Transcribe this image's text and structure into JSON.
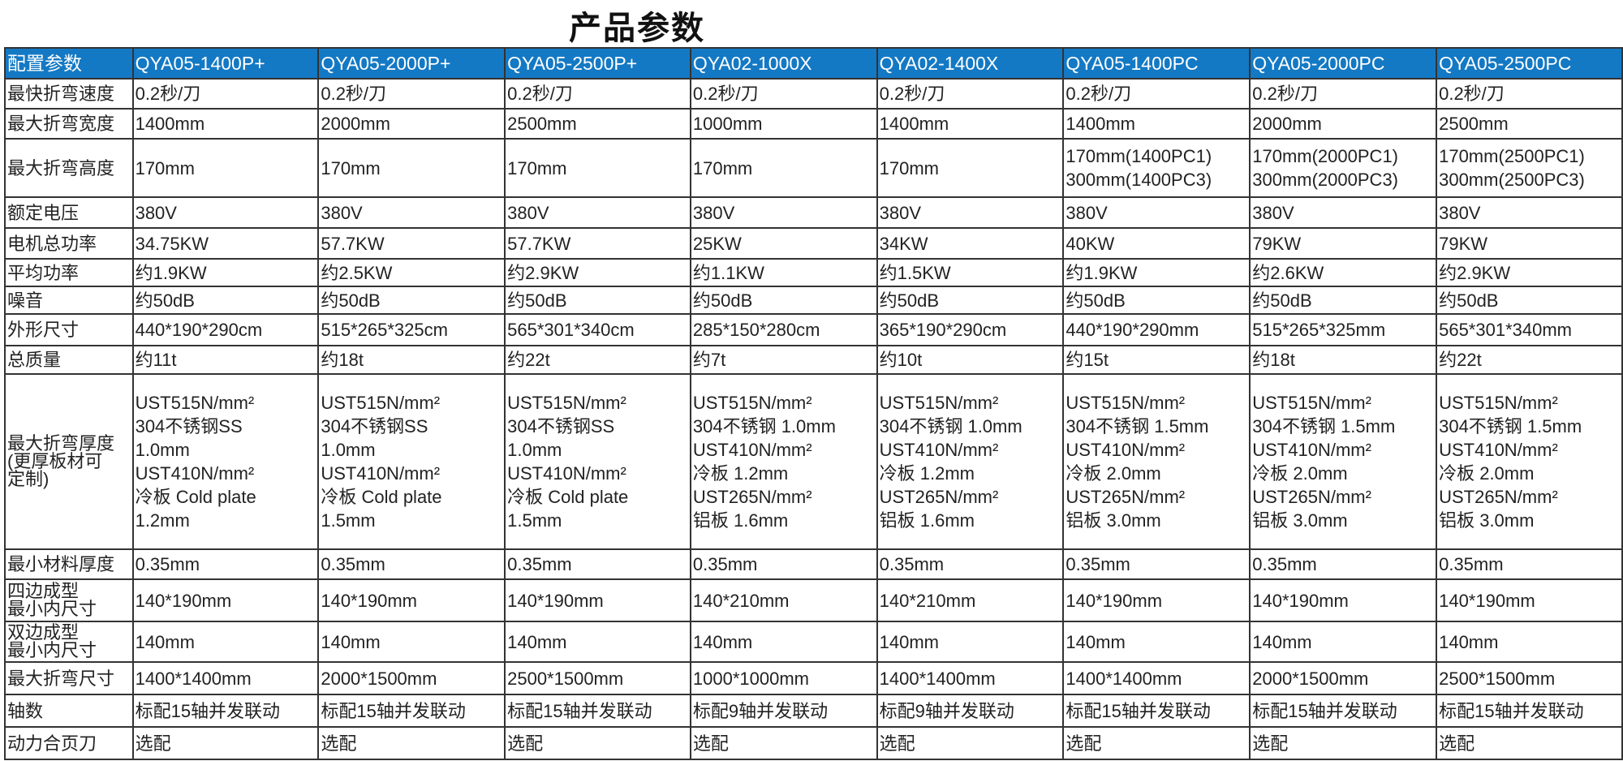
{
  "title": "产品参数",
  "header": [
    "配置参数",
    "QYA05-1400P+",
    "QYA05-2000P+",
    "QYA05-2500P+",
    "QYA02-1000X",
    "QYA02-1400X",
    "QYA05-1400PC",
    "QYA05-2000PC",
    "QYA05-2500PC"
  ],
  "colors": {
    "header_bg": "#1479c4",
    "header_text": "#ffffff"
  },
  "rows": [
    [
      "最快折弯速度",
      "0.2秒/刀",
      "0.2秒/刀",
      "0.2秒/刀",
      "0.2秒/刀",
      "0.2秒/刀",
      "0.2秒/刀",
      "0.2秒/刀",
      "0.2秒/刀"
    ],
    [
      "最大折弯宽度",
      "1400mm",
      "2000mm",
      "2500mm",
      "1000mm",
      "1400mm",
      "1400mm",
      "2000mm",
      "2500mm"
    ],
    [
      "最大折弯高度",
      "170mm",
      "170mm",
      "170mm",
      "170mm",
      "170mm",
      "170mm(1400PC1)\n300mm(1400PC3)",
      "170mm(2000PC1)\n300mm(2000PC3)",
      "170mm(2500PC1)\n300mm(2500PC3)"
    ],
    [
      "额定电压",
      "380V",
      "380V",
      "380V",
      "380V",
      "380V",
      "380V",
      "380V",
      "380V"
    ],
    [
      "电机总功率",
      "34.75KW",
      "57.7KW",
      "57.7KW",
      "25KW",
      "34KW",
      "40KW",
      "79KW",
      "79KW"
    ],
    [
      "平均功率",
      "约1.9KW",
      "约2.5KW",
      "约2.9KW",
      "约1.1KW",
      "约1.5KW",
      "约1.9KW",
      "约2.6KW",
      "约2.9KW"
    ],
    [
      "噪音",
      "约50dB",
      "约50dB",
      "约50dB",
      "约50dB",
      "约50dB",
      "约50dB",
      "约50dB",
      "约50dB"
    ],
    [
      "外形尺寸",
      "440*190*290cm",
      "515*265*325cm",
      "565*301*340cm",
      "285*150*280cm",
      "365*190*290cm",
      "440*190*290mm",
      "515*265*325mm",
      "565*301*340mm"
    ],
    [
      "总质量",
      "约11t",
      "约18t",
      "约22t",
      "约7t",
      "约10t",
      "约15t",
      "约18t",
      "约22t"
    ],
    [
      "最大折弯厚度\n(更厚板材可\n定制)",
      "UST515N/mm²\n304不锈钢SS\n1.0mm\nUST410N/mm²\n冷板 Cold plate\n1.2mm",
      "UST515N/mm²\n304不锈钢SS\n1.0mm\nUST410N/mm²\n冷板 Cold plate\n1.5mm",
      "UST515N/mm²\n304不锈钢SS\n1.0mm\nUST410N/mm²\n冷板 Cold plate\n1.5mm",
      "UST515N/mm²\n304不锈钢 1.0mm\nUST410N/mm²\n冷板 1.2mm\nUST265N/mm²\n铝板 1.6mm",
      "UST515N/mm²\n304不锈钢 1.0mm\nUST410N/mm²\n冷板 1.2mm\nUST265N/mm²\n铝板 1.6mm",
      "UST515N/mm²\n304不锈钢 1.5mm\nUST410N/mm²\n冷板 2.0mm\nUST265N/mm²\n铝板 3.0mm",
      "UST515N/mm²\n304不锈钢 1.5mm\nUST410N/mm²\n冷板 2.0mm\nUST265N/mm²\n铝板 3.0mm",
      "UST515N/mm²\n304不锈钢 1.5mm\nUST410N/mm²\n冷板 2.0mm\nUST265N/mm²\n铝板 3.0mm"
    ],
    [
      "最小材料厚度",
      "0.35mm",
      "0.35mm",
      "0.35mm",
      "0.35mm",
      "0.35mm",
      "0.35mm",
      "0.35mm",
      "0.35mm"
    ],
    [
      "四边成型\n最小内尺寸",
      "140*190mm",
      "140*190mm",
      "140*190mm",
      "140*210mm",
      "140*210mm",
      "140*190mm",
      "140*190mm",
      "140*190mm"
    ],
    [
      "双边成型\n最小内尺寸",
      "140mm",
      "140mm",
      "140mm",
      "140mm",
      "140mm",
      "140mm",
      "140mm",
      "140mm"
    ],
    [
      "最大折弯尺寸",
      "1400*1400mm",
      "2000*1500mm",
      "2500*1500mm",
      "1000*1000mm",
      "1400*1400mm",
      "1400*1400mm",
      "2000*1500mm",
      "2500*1500mm"
    ],
    [
      "轴数",
      "标配15轴并发联动",
      "标配15轴并发联动",
      "标配15轴并发联动",
      "标配9轴并发联动",
      "标配9轴并发联动",
      "标配15轴并发联动",
      "标配15轴并发联动",
      "标配15轴并发联动"
    ],
    [
      "动力合页刀",
      "选配",
      "选配",
      "选配",
      "选配",
      "选配",
      "选配",
      "选配",
      "选配"
    ]
  ]
}
